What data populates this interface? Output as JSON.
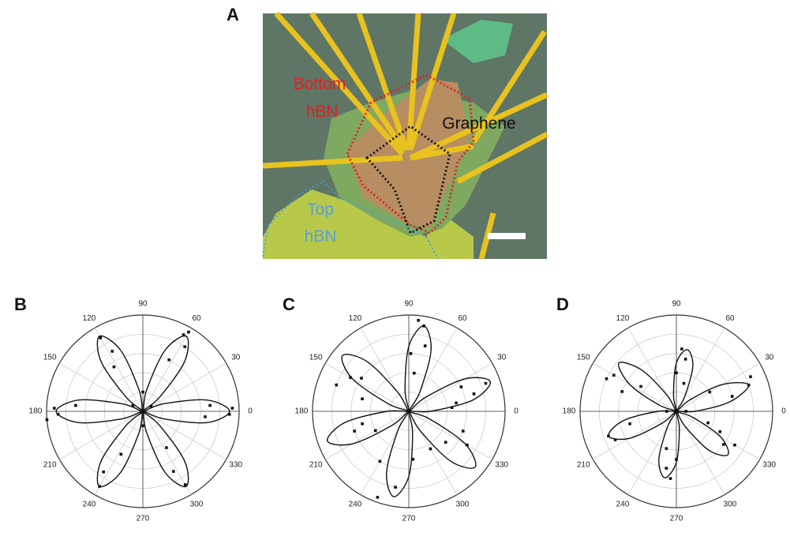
{
  "figure": {
    "panel_label": "A",
    "micrograph": {
      "bottom_label": [
        "Bottom",
        "hBN"
      ],
      "graphene_label": "Graphene",
      "top_label": [
        "Top",
        "hBN"
      ]
    }
  },
  "chart_data": [
    {
      "type": "polar",
      "title": "B",
      "rlim": [
        0,
        1
      ],
      "thetaticks": [
        0,
        30,
        60,
        90,
        120,
        150,
        180,
        210,
        240,
        270,
        300,
        330
      ],
      "color": "#111111",
      "theta": [
        2,
        358,
        5,
        60,
        57,
        63,
        62,
        120,
        117,
        123,
        178,
        182,
        175,
        240,
        237,
        243,
        300,
        297,
        303,
        30,
        150,
        270,
        185,
        355,
        90
      ],
      "r": [
        0.93,
        0.9,
        0.7,
        0.95,
        0.8,
        0.6,
        0.9,
        0.88,
        0.7,
        0.55,
        0.92,
        0.88,
        0.7,
        0.9,
        0.75,
        0.5,
        0.88,
        0.7,
        0.45,
        0.1,
        0.12,
        0.15,
        1.0,
        0.65,
        0.2
      ],
      "fit": {
        "theta": [
          0,
          10,
          20,
          30,
          40,
          50,
          60,
          70,
          80,
          90,
          100,
          110,
          120,
          130,
          140,
          150,
          160,
          170,
          180,
          190,
          200,
          210,
          220,
          230,
          240,
          250,
          260,
          270,
          280,
          290,
          300,
          310,
          320,
          330,
          340,
          350
        ],
        "r": [
          0.9,
          0.675,
          0.225,
          0,
          0.225,
          0.675,
          0.9,
          0.675,
          0.225,
          0,
          0.225,
          0.675,
          0.9,
          0.675,
          0.225,
          0,
          0.225,
          0.675,
          0.9,
          0.675,
          0.225,
          0,
          0.225,
          0.675,
          0.9,
          0.675,
          0.225,
          0,
          0.225,
          0.675,
          0.9,
          0.675,
          0.225,
          0,
          0.225,
          0.675
        ]
      }
    },
    {
      "type": "polar",
      "title": "C",
      "rlim": [
        0,
        1
      ],
      "thetaticks": [
        0,
        30,
        60,
        90,
        120,
        150,
        180,
        210,
        240,
        270,
        300,
        330
      ],
      "color": "#111111",
      "theta": [
        80,
        84,
        76,
        88,
        82,
        20,
        15,
        25,
        10,
        150,
        160,
        145,
        165,
        200,
        195,
        210,
        260,
        250,
        275,
        240,
        330,
        340,
        320,
        300,
        5
      ],
      "r": [
        0.9,
        0.95,
        0.7,
        0.6,
        0.4,
        0.85,
        0.7,
        0.6,
        0.5,
        0.7,
        0.8,
        0.6,
        0.5,
        0.6,
        0.5,
        0.4,
        0.8,
        0.95,
        0.5,
        0.6,
        0.7,
        0.6,
        0.5,
        0.45,
        0.45
      ],
      "fit": {
        "theta": [
          0,
          10,
          20,
          30,
          40,
          50,
          60,
          70,
          80,
          90,
          100,
          110,
          120,
          130,
          140,
          150,
          160,
          170,
          180,
          190,
          200,
          210,
          220,
          230,
          240,
          250,
          260,
          270,
          280,
          290,
          300,
          310,
          320,
          330,
          340,
          350
        ],
        "r": [
          0.225,
          0.675,
          0.9,
          0.675,
          0.225,
          0,
          0.225,
          0.675,
          0.9,
          0.675,
          0.225,
          0,
          0.225,
          0.675,
          0.9,
          0.675,
          0.225,
          0,
          0.225,
          0.675,
          0.9,
          0.675,
          0.225,
          0,
          0.225,
          0.675,
          0.9,
          0.675,
          0.225,
          0,
          0.225,
          0.675,
          0.9,
          0.675,
          0.225,
          0
        ]
      }
    },
    {
      "type": "polar",
      "title": "D",
      "rlim": [
        0,
        1
      ],
      "thetaticks": [
        0,
        30,
        60,
        90,
        120,
        150,
        180,
        210,
        240,
        270,
        300,
        330
      ],
      "color": "#111111",
      "theta": [
        85,
        80,
        90,
        75,
        20,
        25,
        15,
        30,
        150,
        155,
        160,
        145,
        200,
        205,
        195,
        265,
        260,
        270,
        255,
        330,
        325,
        335,
        340,
        0,
        180
      ],
      "r": [
        0.65,
        0.55,
        0.4,
        0.3,
        0.8,
        0.85,
        0.6,
        0.4,
        0.75,
        0.8,
        0.6,
        0.45,
        0.75,
        0.7,
        0.5,
        0.7,
        0.6,
        0.5,
        0.4,
        0.7,
        0.6,
        0.5,
        0.35,
        0.1,
        0.1
      ],
      "fit": {
        "theta": [
          0,
          10,
          20,
          30,
          40,
          50,
          60,
          70,
          80,
          90,
          100,
          110,
          120,
          130,
          140,
          150,
          160,
          170,
          180,
          190,
          200,
          210,
          220,
          230,
          240,
          250,
          260,
          270,
          280,
          290,
          300,
          310,
          320,
          330,
          340,
          350
        ],
        "r": [
          0.19,
          0.56,
          0.8,
          0.56,
          0.19,
          0,
          0.17,
          0.5,
          0.65,
          0.5,
          0.17,
          0,
          0.19,
          0.56,
          0.78,
          0.56,
          0.19,
          0,
          0.19,
          0.56,
          0.75,
          0.56,
          0.19,
          0,
          0.18,
          0.53,
          0.7,
          0.53,
          0.18,
          0,
          0.18,
          0.53,
          0.7,
          0.53,
          0.18,
          0
        ]
      }
    }
  ]
}
